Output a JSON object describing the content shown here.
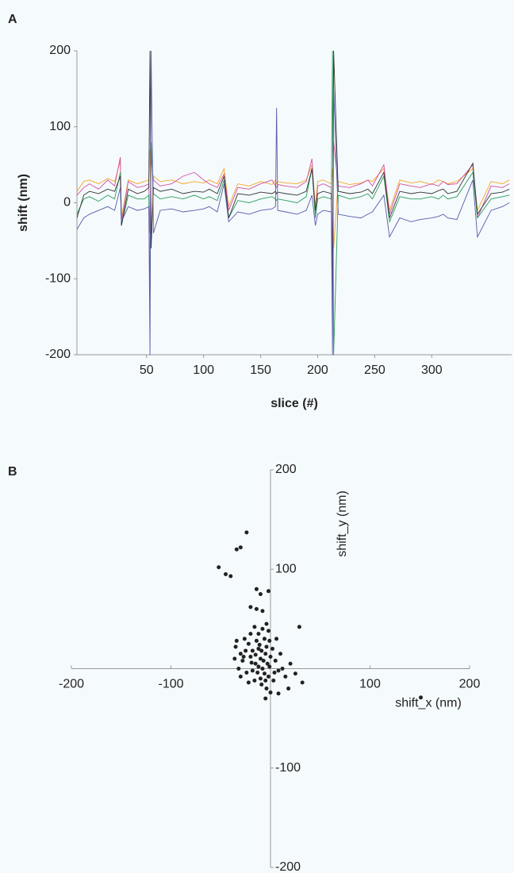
{
  "chart_data": [
    {
      "type": "line",
      "panel_label": "A",
      "xlabel": "slice (#)",
      "ylabel": "shift (nm)",
      "xlim": [
        -11,
        370
      ],
      "ylim": [
        -200,
        200
      ],
      "xticks": [
        50,
        100,
        150,
        200,
        250,
        300
      ],
      "yticks": [
        200,
        100,
        0,
        -100,
        -200
      ],
      "x": [
        -11,
        -5,
        0,
        8,
        16,
        22,
        27,
        28,
        34,
        42,
        48,
        52,
        53,
        54,
        56,
        62,
        72,
        82,
        92,
        100,
        105,
        112,
        118,
        122,
        130,
        140,
        150,
        160,
        163,
        164,
        165,
        172,
        182,
        190,
        195,
        198,
        200,
        205,
        212,
        213,
        214,
        218,
        228,
        238,
        244,
        248,
        258,
        263,
        272,
        282,
        290,
        300,
        306,
        310,
        314,
        322,
        336,
        340,
        352,
        362,
        368
      ],
      "series": [
        {
          "color": "#f5a623",
          "values": [
            15,
            28,
            30,
            25,
            32,
            28,
            55,
            -20,
            30,
            25,
            28,
            30,
            70,
            -40,
            35,
            28,
            30,
            25,
            28,
            26,
            30,
            25,
            45,
            -5,
            25,
            22,
            28,
            24,
            30,
            25,
            28,
            26,
            25,
            30,
            50,
            -5,
            28,
            30,
            25,
            45,
            -60,
            28,
            24,
            26,
            30,
            28,
            45,
            -10,
            30,
            26,
            28,
            24,
            30,
            28,
            25,
            28,
            45,
            -10,
            28,
            25,
            30
          ]
        },
        {
          "color": "#d64fa0",
          "values": [
            10,
            20,
            25,
            18,
            30,
            22,
            60,
            -25,
            28,
            20,
            22,
            25,
            -40,
            60,
            30,
            22,
            25,
            35,
            40,
            30,
            25,
            20,
            38,
            -10,
            20,
            18,
            25,
            30,
            22,
            20,
            24,
            22,
            20,
            28,
            58,
            -15,
            22,
            25,
            20,
            -80,
            80,
            22,
            20,
            25,
            30,
            22,
            50,
            -15,
            25,
            22,
            20,
            25,
            22,
            28,
            24,
            25,
            50,
            -20,
            22,
            20,
            25
          ]
        },
        {
          "color": "#2a9d5a",
          "values": [
            -15,
            5,
            8,
            2,
            10,
            5,
            40,
            -30,
            10,
            5,
            5,
            10,
            -120,
            80,
            12,
            5,
            8,
            5,
            10,
            5,
            8,
            3,
            30,
            -20,
            3,
            0,
            5,
            8,
            5,
            3,
            5,
            3,
            0,
            8,
            45,
            -20,
            5,
            8,
            5,
            200,
            -200,
            10,
            5,
            8,
            12,
            5,
            35,
            -25,
            8,
            5,
            5,
            8,
            5,
            10,
            5,
            8,
            40,
            -20,
            5,
            8,
            10
          ]
        },
        {
          "color": "#333333",
          "values": [
            -20,
            10,
            15,
            12,
            18,
            15,
            35,
            -30,
            18,
            12,
            15,
            20,
            200,
            -60,
            20,
            15,
            18,
            12,
            15,
            14,
            18,
            12,
            35,
            -20,
            12,
            10,
            14,
            12,
            15,
            12,
            14,
            12,
            10,
            15,
            45,
            -10,
            12,
            15,
            12,
            -120,
            200,
            15,
            12,
            14,
            18,
            12,
            40,
            -20,
            15,
            12,
            14,
            12,
            16,
            18,
            12,
            15,
            52,
            -15,
            12,
            14,
            18
          ]
        },
        {
          "color": "#5a5aa8",
          "values": [
            -35,
            -20,
            -15,
            -10,
            -5,
            -10,
            20,
            -25,
            -5,
            -10,
            -8,
            -5,
            -200,
            200,
            -40,
            -10,
            -8,
            -12,
            -10,
            -8,
            -5,
            -12,
            25,
            -25,
            -12,
            -15,
            -10,
            -8,
            -5,
            125,
            -10,
            -12,
            -15,
            -10,
            10,
            -30,
            -15,
            -10,
            -12,
            -200,
            150,
            -15,
            -18,
            -20,
            -15,
            -12,
            10,
            -45,
            -20,
            -25,
            -22,
            -20,
            -18,
            -15,
            -20,
            -22,
            30,
            -45,
            -10,
            -5,
            0
          ]
        }
      ]
    },
    {
      "type": "scatter",
      "panel_label": "B",
      "xlabel": "shift_x (nm)",
      "ylabel": "shift_y (nm)",
      "color": "#222222",
      "xlim": [
        -200,
        200
      ],
      "ylim": [
        -200,
        200
      ],
      "xticks": [
        -200,
        -100,
        100,
        200
      ],
      "yticks": [
        200,
        100,
        -100,
        -200
      ],
      "x": [
        -10,
        -15,
        -5,
        -12,
        -20,
        -8,
        -18,
        -3,
        0,
        -25,
        -14,
        -6,
        -22,
        -28,
        -30,
        -2,
        -10,
        -16,
        -6,
        2,
        5,
        8,
        -1,
        -12,
        -20,
        -8,
        -4,
        -24,
        -32,
        -35,
        -26,
        -18,
        -12,
        -9,
        -4,
        3,
        10,
        12,
        -30,
        -16,
        -2,
        6,
        -22,
        -11,
        -7,
        -13,
        -19,
        -1,
        4,
        -27,
        -15,
        -9,
        -5,
        15,
        20,
        18,
        -36,
        -34,
        25,
        8,
        -52,
        -24,
        -34,
        -30,
        -45,
        -40,
        -14,
        -10,
        -2,
        -20,
        -14,
        -8,
        -4,
        29,
        151,
        32,
        -5,
        0
      ],
      "values": [
        10,
        5,
        15,
        20,
        12,
        0,
        -2,
        5,
        12,
        18,
        28,
        30,
        25,
        8,
        15,
        -8,
        -10,
        -12,
        -5,
        20,
        8,
        -2,
        28,
        35,
        35,
        40,
        22,
        -4,
        0,
        22,
        30,
        18,
        2,
        -16,
        -20,
        -12,
        15,
        0,
        -8,
        42,
        38,
        30,
        -14,
        24,
        8,
        -4,
        6,
        2,
        -4,
        12,
        14,
        18,
        -12,
        -8,
        5,
        -20,
        10,
        28,
        -5,
        -25,
        102,
        137,
        120,
        122,
        95,
        93,
        80,
        75,
        78,
        62,
        60,
        58,
        45,
        42,
        -29,
        -14,
        -30,
        -24
      ]
    }
  ]
}
